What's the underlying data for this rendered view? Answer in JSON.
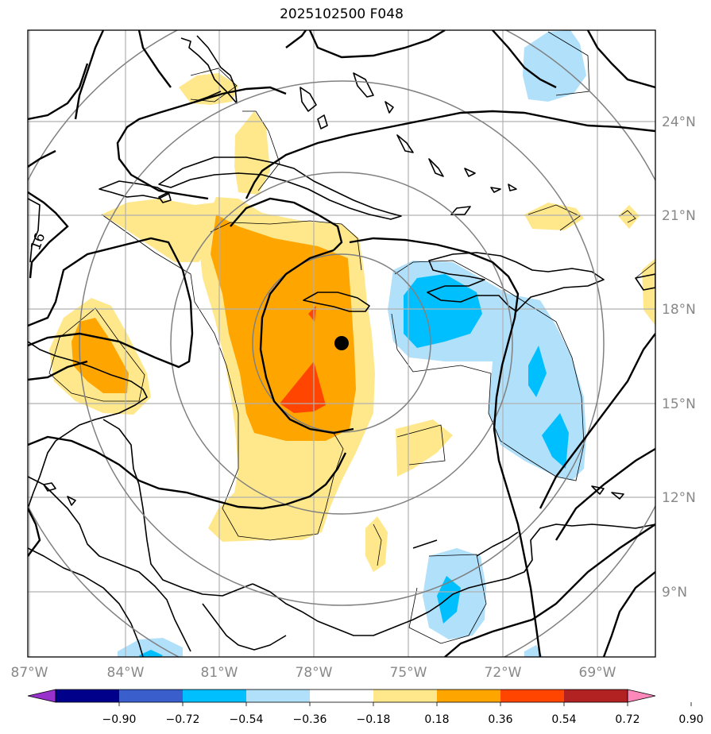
{
  "title": "2025102500 F048",
  "map": {
    "projection": "lat-lon",
    "lon_range": [
      -87,
      -67.5
    ],
    "lat_range": [
      7,
      27
    ],
    "lon_ticks": [
      {
        "value": -87,
        "label": "87°W"
      },
      {
        "value": -84,
        "label": "84°W"
      },
      {
        "value": -81,
        "label": "81°W"
      },
      {
        "value": -78,
        "label": "78°W"
      },
      {
        "value": -75,
        "label": "75°W"
      },
      {
        "value": -72,
        "label": "72°W"
      },
      {
        "value": -69,
        "label": "69°W"
      }
    ],
    "lat_ticks": [
      {
        "value": 24,
        "label": "24°N"
      },
      {
        "value": 21,
        "label": "21°N"
      },
      {
        "value": 18,
        "label": "18°N"
      },
      {
        "value": 15,
        "label": "15°N"
      },
      {
        "value": 12,
        "label": "12°N"
      },
      {
        "value": 9,
        "label": "9°N"
      }
    ],
    "storm_center": {
      "lon": -77.0,
      "lat": 16.9
    },
    "contour_label": "16",
    "range_rings_deg": [
      2,
      4,
      6,
      8
    ]
  },
  "colorbar": {
    "levels": [
      "−0.90",
      "−0.72",
      "−0.54",
      "−0.36",
      "−0.18",
      "0.18",
      "0.36",
      "0.54",
      "0.72",
      "0.90"
    ],
    "colors": [
      "#9932cc",
      "#00008b",
      "#3a5fcd",
      "#00bfff",
      "#b0e0fa",
      "#ffffff",
      "#ffe88c",
      "#ffa500",
      "#ff4500",
      "#b22222",
      "#ff88bb"
    ]
  }
}
